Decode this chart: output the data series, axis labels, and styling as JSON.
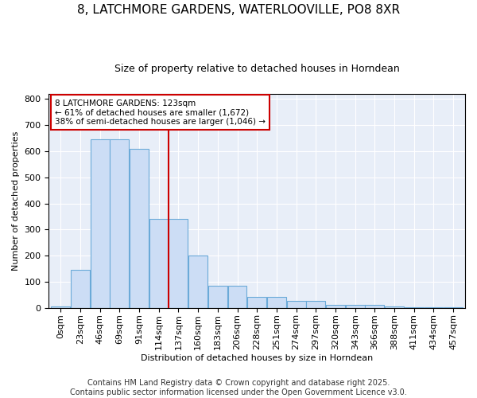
{
  "title_line1": "8, LATCHMORE GARDENS, WATERLOOVILLE, PO8 8XR",
  "title_line2": "Size of property relative to detached houses in Horndean",
  "xlabel": "Distribution of detached houses by size in Horndean",
  "ylabel": "Number of detached properties",
  "bar_color": "#ccddf5",
  "bar_edge_color": "#6baad8",
  "fig_bg_color": "#ffffff",
  "plot_bg_color": "#e8eef8",
  "grid_color": "#ffffff",
  "bins": [
    "0sqm",
    "23sqm",
    "46sqm",
    "69sqm",
    "91sqm",
    "114sqm",
    "137sqm",
    "160sqm",
    "183sqm",
    "206sqm",
    "228sqm",
    "251sqm",
    "274sqm",
    "297sqm",
    "320sqm",
    "343sqm",
    "366sqm",
    "388sqm",
    "411sqm",
    "434sqm",
    "457sqm"
  ],
  "values": [
    5,
    145,
    645,
    645,
    610,
    340,
    340,
    200,
    85,
    85,
    42,
    42,
    25,
    25,
    10,
    10,
    10,
    5,
    1,
    1,
    3
  ],
  "vline_color": "#cc0000",
  "vline_x": 5.5,
  "annotation_text": "8 LATCHMORE GARDENS: 123sqm\n← 61% of detached houses are smaller (1,672)\n38% of semi-detached houses are larger (1,046) →",
  "annotation_box_color": "#ffffff",
  "annotation_box_edge": "#cc0000",
  "ylim": [
    0,
    820
  ],
  "yticks": [
    0,
    100,
    200,
    300,
    400,
    500,
    600,
    700,
    800
  ],
  "footnote": "Contains HM Land Registry data © Crown copyright and database right 2025.\nContains public sector information licensed under the Open Government Licence v3.0.",
  "title1_fontsize": 11,
  "title2_fontsize": 9,
  "axis_label_fontsize": 8,
  "tick_fontsize": 8,
  "annotation_fontsize": 7.5,
  "footnote_fontsize": 7
}
